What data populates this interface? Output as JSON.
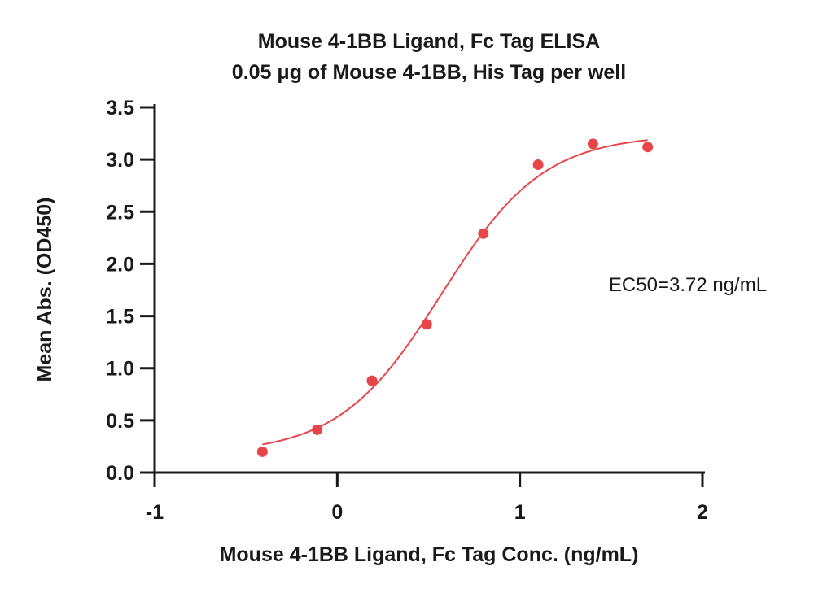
{
  "chart_data": {
    "type": "scatter",
    "title": "Mouse 4-1BB Ligand, Fc Tag ELISA",
    "subtitle": "0.05 μg of Mouse 4-1BB, His Tag per well",
    "xlabel": "Mouse 4-1BB Ligand, Fc Tag Conc. (ng/mL)",
    "ylabel": "Mean Abs. (OD450)",
    "xlim": [
      -1,
      2
    ],
    "ylim": [
      0,
      3.5
    ],
    "x_ticks": [
      "-1",
      "0",
      "1",
      "2"
    ],
    "y_ticks": [
      "0.0",
      "0.5",
      "1.0",
      "1.5",
      "2.0",
      "2.5",
      "3.0",
      "3.5"
    ],
    "grid": false,
    "annotation": "EC50=3.72 ng/mL",
    "series": [
      {
        "points": [
          {
            "x": -0.41,
            "y": 0.2
          },
          {
            "x": -0.11,
            "y": 0.41
          },
          {
            "x": 0.19,
            "y": 0.88
          },
          {
            "x": 0.49,
            "y": 1.42
          },
          {
            "x": 0.8,
            "y": 2.29
          },
          {
            "x": 1.1,
            "y": 2.95
          },
          {
            "x": 1.4,
            "y": 3.15
          },
          {
            "x": 1.7,
            "y": 3.12
          }
        ],
        "fit": {
          "model": "4PL sigmoid",
          "bottom": 0.18,
          "top": 3.24,
          "logEC50": 0.5705,
          "hill": 1.55,
          "x_range": [
            -0.41,
            1.7
          ]
        },
        "color": "#e8454a"
      }
    ]
  }
}
